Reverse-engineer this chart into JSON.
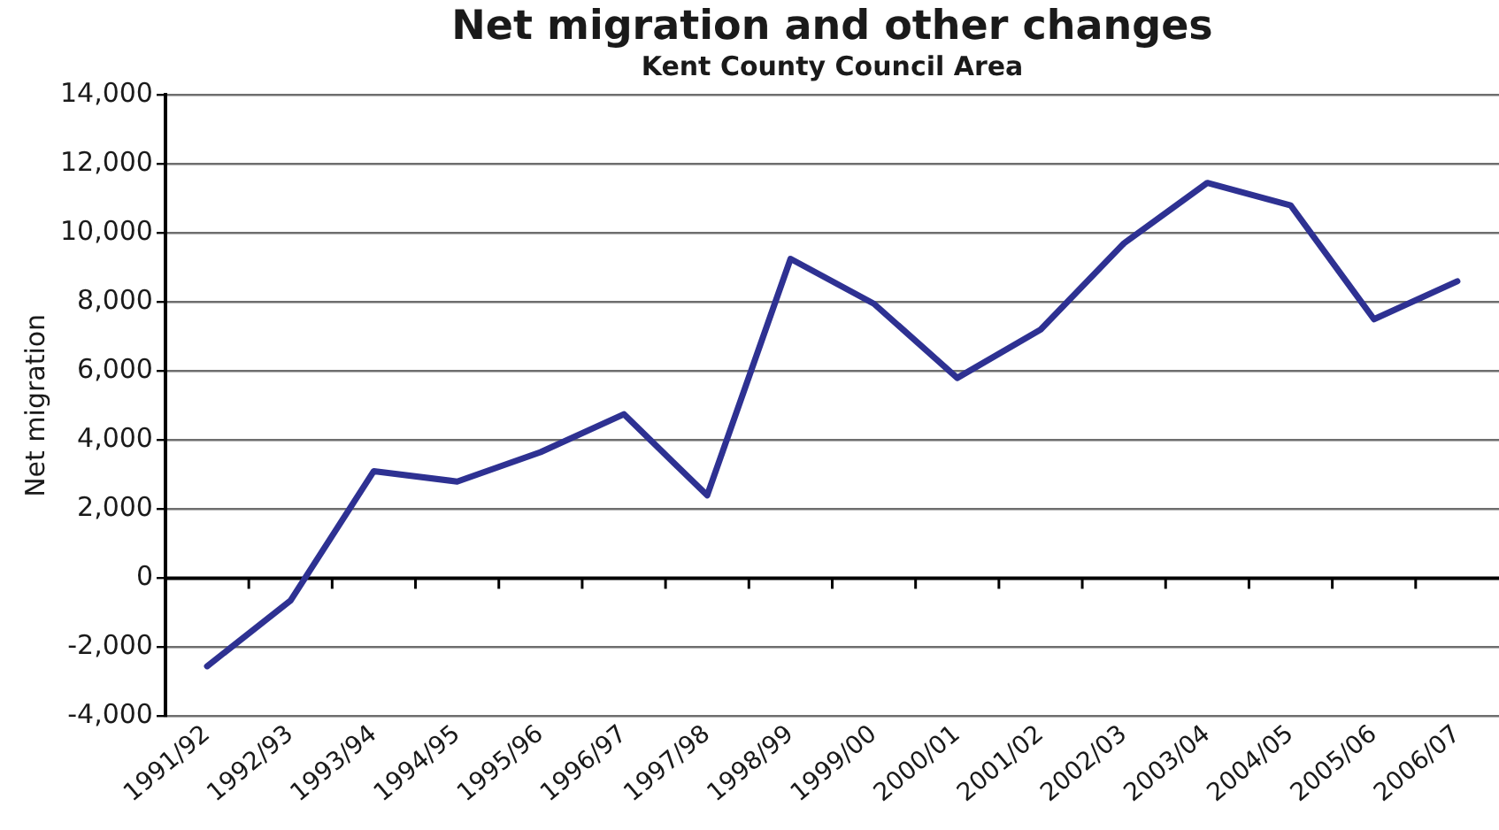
{
  "chart_data": {
    "type": "line",
    "title": "Net migration and other changes",
    "subtitle": "Kent County Council Area",
    "ylabel": "Net migration",
    "categories": [
      "1991/92",
      "1992/93",
      "1993/94",
      "1994/95",
      "1995/96",
      "1996/97",
      "1997/98",
      "1998/99",
      "1999/00",
      "2000/01",
      "2001/02",
      "2002/03",
      "2003/04",
      "2004/05",
      "2005/06",
      "2006/07"
    ],
    "series": [
      {
        "color": "#2e3192",
        "values": [
          -2550,
          -650,
          3100,
          2800,
          3650,
          4750,
          2400,
          9250,
          7950,
          5800,
          7200,
          9700,
          11450,
          10800,
          7500,
          8600
        ]
      }
    ],
    "ylim": [
      -4000,
      14000
    ],
    "yticks": [
      {
        "value": -4000,
        "label": "-4,000"
      },
      {
        "value": -2000,
        "label": "-2,000"
      },
      0,
      {
        "value": 2000,
        "label": "2,000"
      },
      {
        "value": 4000,
        "label": "4,000"
      },
      {
        "value": 6000,
        "label": "6,000"
      },
      {
        "value": 8000,
        "label": "8,000"
      },
      {
        "value": 10000,
        "label": "10,000"
      },
      {
        "value": 12000,
        "label": "12,000"
      },
      {
        "value": 14000,
        "label": "14,000"
      }
    ],
    "grid": "y",
    "marker": "none",
    "line_style": "solid"
  }
}
